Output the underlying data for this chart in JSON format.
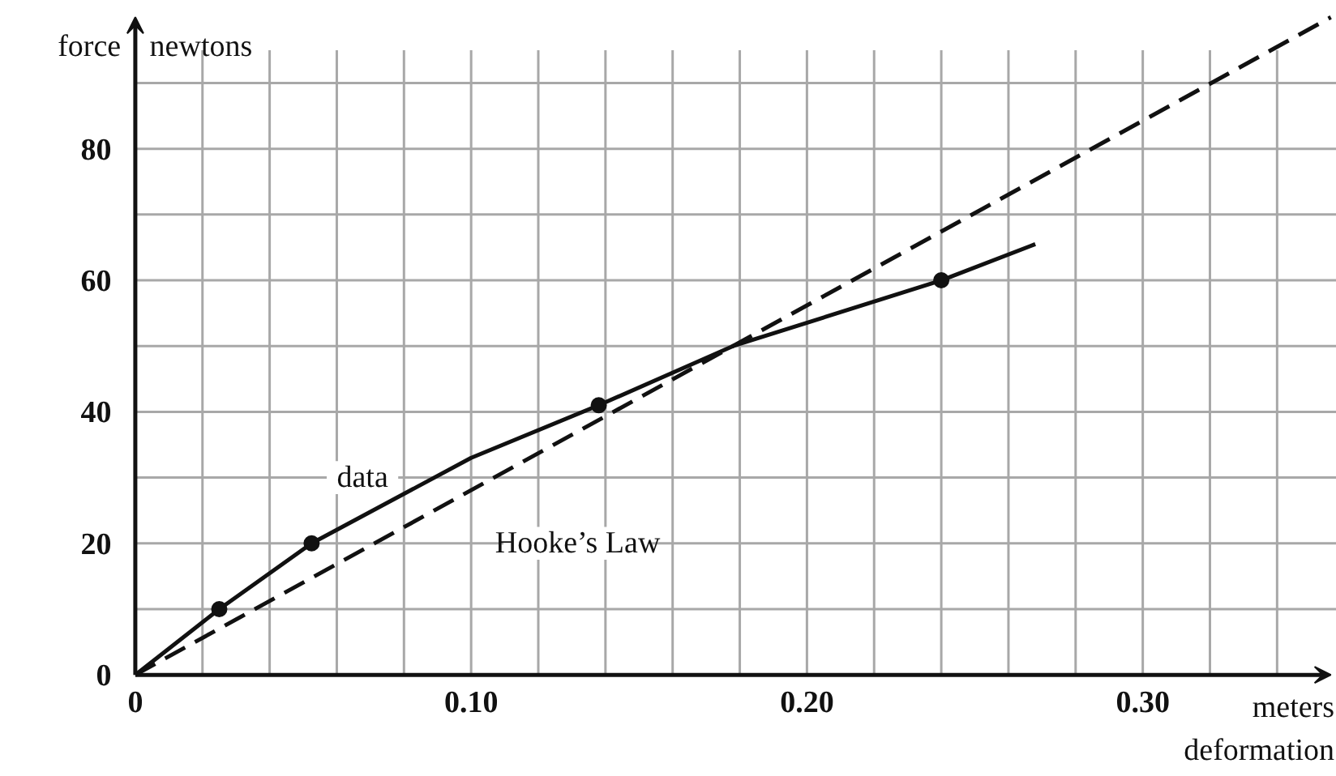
{
  "chart_data": {
    "type": "line",
    "xlabel": "deformation",
    "ylabel": "force",
    "annotations": [
      "newtons",
      "meters",
      "data",
      "Hooke’s Law"
    ],
    "series": [
      {
        "color": "#111111",
        "line_style": "solid",
        "marker": "none",
        "x": [
          0,
          0.025,
          0.0525,
          0.1,
          0.138,
          0.178,
          0.24,
          0.268
        ],
        "values": [
          0,
          10,
          20,
          33,
          41,
          50,
          60,
          65.5
        ]
      },
      {
        "type": "scatter",
        "color": "#111111",
        "marker": "circle",
        "x": [
          0.025,
          0.0525,
          0.138,
          0.24
        ],
        "values": [
          10,
          20,
          41,
          60
        ]
      },
      {
        "color": "#111111",
        "line_style": "dashed",
        "marker": "none",
        "x": [
          0,
          0.356
        ],
        "values": [
          0,
          100
        ]
      }
    ],
    "xlim": [
      0,
      0.356
    ],
    "ylim": [
      0,
      100
    ],
    "xticks": [
      0,
      {
        "value": 0.02,
        "label": null
      },
      {
        "value": 0.04,
        "label": null
      },
      {
        "value": 0.06,
        "label": null
      },
      {
        "value": 0.08,
        "label": null
      },
      {
        "value": 0.1,
        "label": "0.10"
      },
      {
        "value": 0.12,
        "label": null
      },
      {
        "value": 0.14,
        "label": null
      },
      {
        "value": 0.16,
        "label": null
      },
      {
        "value": 0.18,
        "label": null
      },
      {
        "value": 0.2,
        "label": "0.20"
      },
      {
        "value": 0.22,
        "label": null
      },
      {
        "value": 0.24,
        "label": null
      },
      {
        "value": 0.26,
        "label": null
      },
      {
        "value": 0.28,
        "label": null
      },
      {
        "value": 0.3,
        "label": "0.30"
      },
      {
        "value": 0.32,
        "label": null
      },
      {
        "value": 0.34,
        "label": null
      }
    ],
    "yticks": [
      0,
      {
        "value": 10,
        "label": null
      },
      20,
      {
        "value": 30,
        "label": null
      },
      40,
      {
        "value": 50,
        "label": null
      },
      60,
      {
        "value": 70,
        "label": null
      },
      80,
      {
        "value": 90,
        "label": null
      }
    ],
    "grid": true
  }
}
